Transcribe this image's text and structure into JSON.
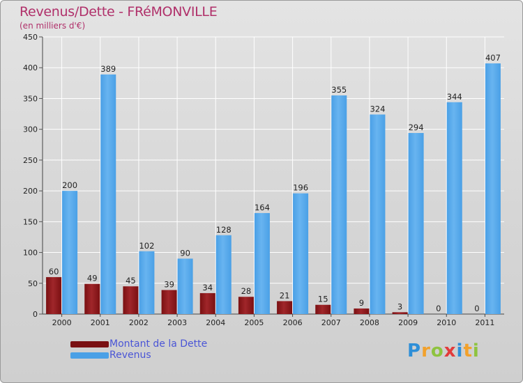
{
  "chart_data": {
    "type": "bar",
    "title": "Revenus/Dette - FRéMONVILLE",
    "subtitle": "(en milliers d'€)",
    "categories": [
      "2000",
      "2001",
      "2002",
      "2003",
      "2004",
      "2005",
      "2006",
      "2007",
      "2008",
      "2009",
      "2010",
      "2011"
    ],
    "series": [
      {
        "name": "Montant de la Dette",
        "color": "#7a1012",
        "values": [
          60,
          49,
          45,
          39,
          34,
          28,
          21,
          15,
          9,
          3,
          0,
          0
        ]
      },
      {
        "name": "Revenus",
        "color": "#4aa0e6",
        "values": [
          200,
          389,
          102,
          90,
          128,
          164,
          196,
          355,
          324,
          294,
          344,
          407
        ]
      }
    ],
    "ylim": [
      0,
      450
    ],
    "yticks": [
      0,
      50,
      100,
      150,
      200,
      250,
      300,
      350,
      400,
      450
    ],
    "grid": true,
    "legend": "bottom-left"
  },
  "branding": {
    "logo_letters": [
      "P",
      "r",
      "o",
      "x",
      "i",
      "t",
      "i"
    ],
    "logo_colors": [
      "#2e8fd8",
      "#f2a12b",
      "#8ec33f",
      "#e23b3b",
      "#2e8fd8",
      "#f2a12b",
      "#8ec33f"
    ]
  }
}
